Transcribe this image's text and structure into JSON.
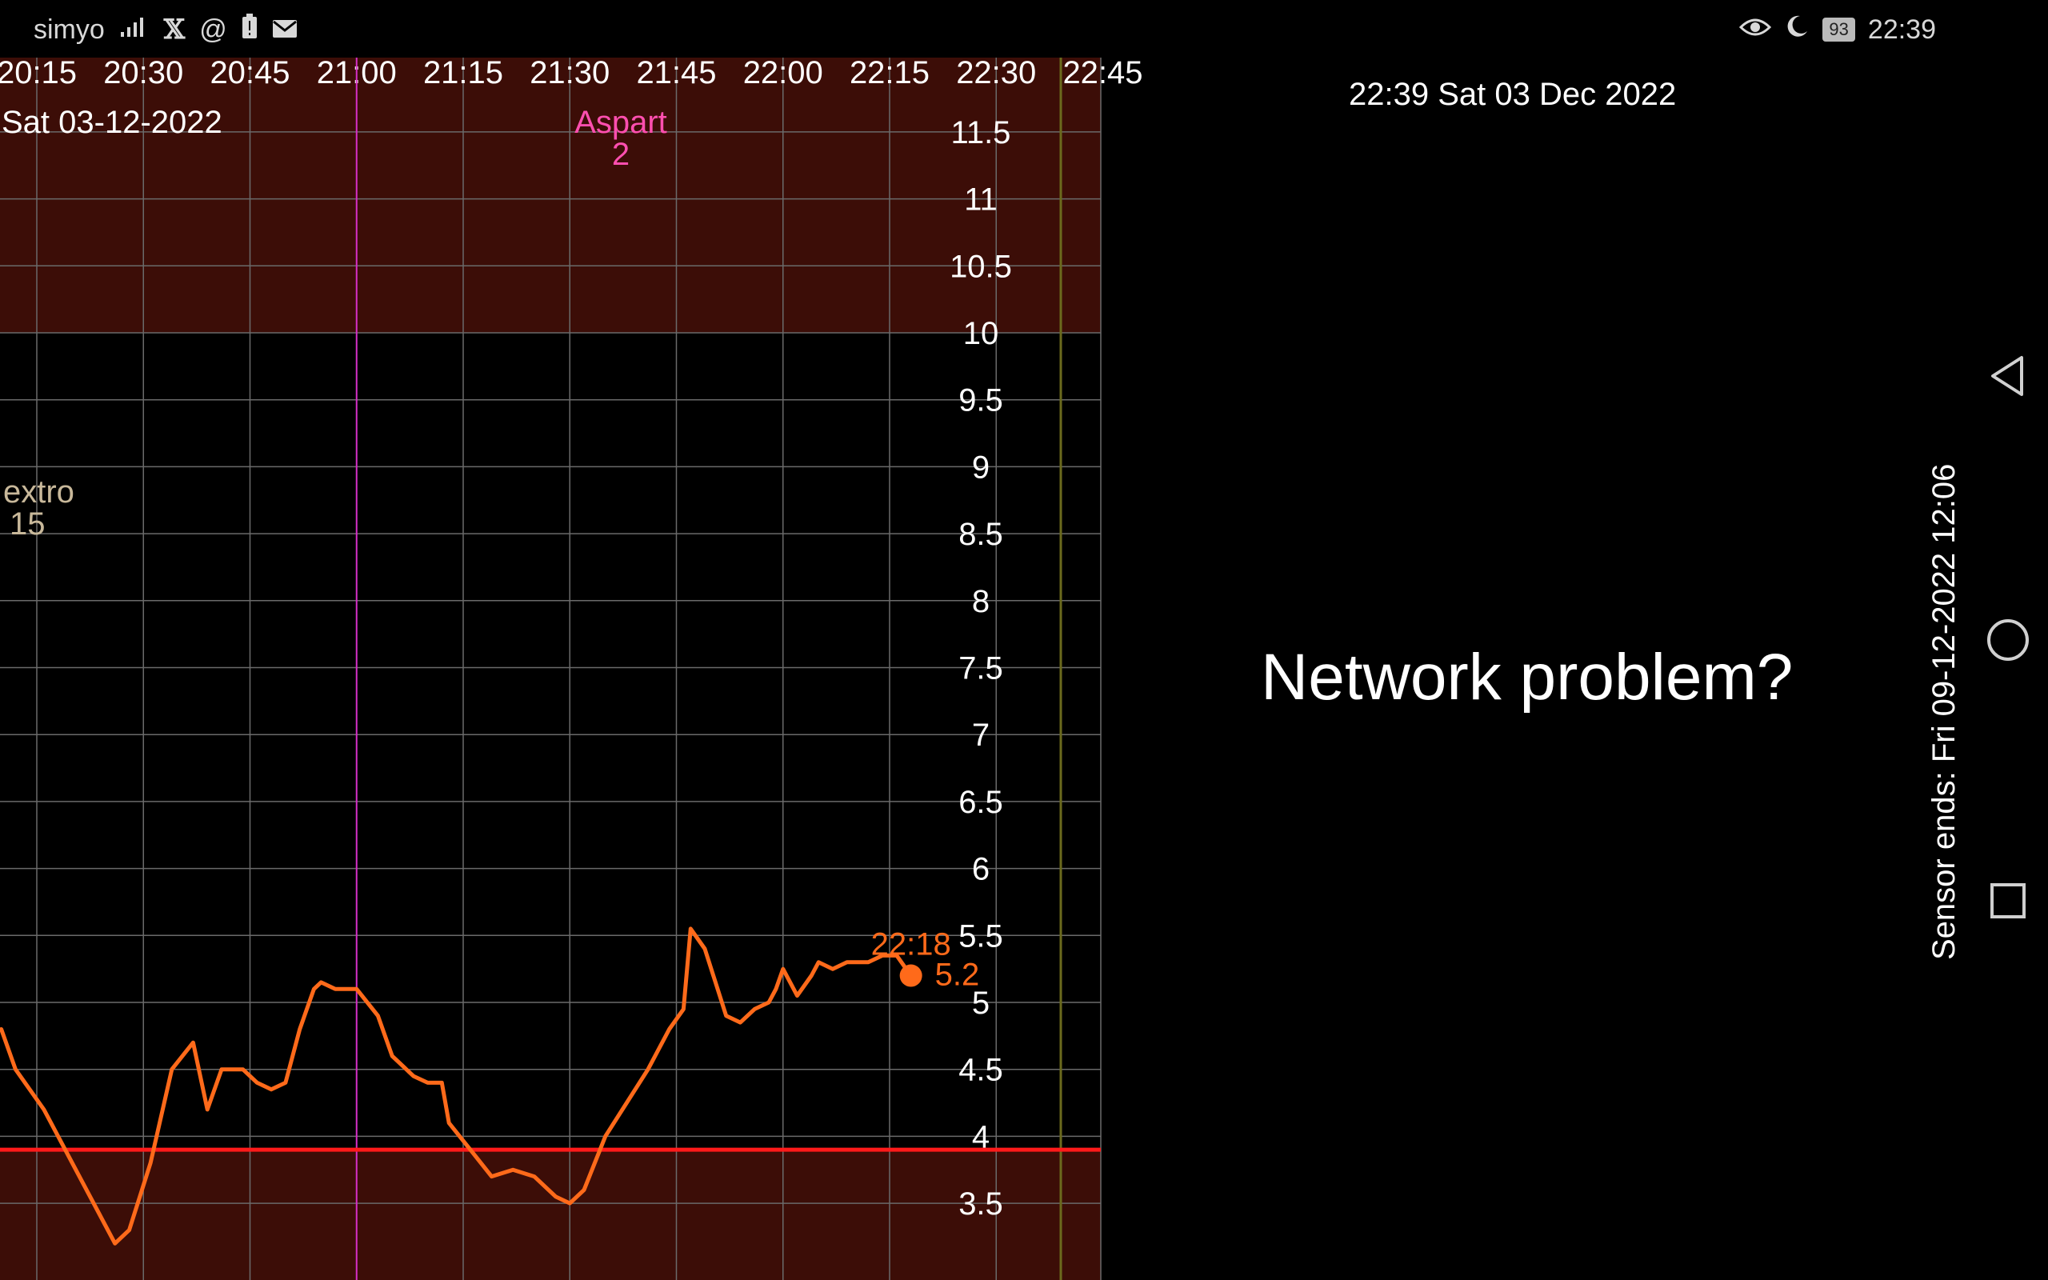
{
  "status_bar": {
    "carrier": "simyo",
    "icons_left": [
      "signal-icon",
      "x-icon",
      "at-icon",
      "battery-alert-icon",
      "mail-icon"
    ],
    "icons_right": [
      "eye-icon",
      "moon-icon"
    ],
    "battery": "93",
    "time": "22:39"
  },
  "chart": {
    "x_tick_labels": [
      "20:15",
      "20:30",
      "20:45",
      "21:00",
      "21:15",
      "21:30",
      "21:45",
      "22:00",
      "22:15",
      "22:30",
      "22:45"
    ],
    "date_label": "Sat 03-12-2022",
    "y_tick_labels": [
      "11.5",
      "11",
      "10.5",
      "10",
      "9.5",
      "9",
      "8.5",
      "8",
      "7.5",
      "7",
      "6.5",
      "6",
      "5.5",
      "5",
      "4.5",
      "4",
      "3.5"
    ],
    "treatment_aspart": {
      "name": "Aspart",
      "value": "2"
    },
    "treatment_dextro": {
      "name": "extro",
      "value": "15"
    },
    "last_reading": {
      "time": "22:18",
      "value": "5.2"
    },
    "colors": {
      "background": "#000000",
      "out_of_range_band": "#3c0d07",
      "grid": "#6a6a6a",
      "glucose_line": "#ff6a1a",
      "low_line": "#ff1a1a",
      "insulin_marker": "#d630c8",
      "now_marker": "#6b6a1d",
      "aspart_text": "#ff4fb0",
      "dextro_text": "#c8b89a"
    }
  },
  "chart_data": {
    "type": "line",
    "title": "",
    "xlabel": "",
    "ylabel": "",
    "x_range": [
      "20:10",
      "22:46"
    ],
    "ylim": [
      3.1,
      12.0
    ],
    "high_threshold": 10,
    "low_threshold": 3.9,
    "grid": true,
    "series": [
      {
        "values_time_glucose": [
          [
            "20:10",
            4.8
          ],
          [
            "20:12",
            4.5
          ],
          [
            "20:16",
            4.2
          ],
          [
            "20:20",
            3.8
          ],
          [
            "20:24",
            3.4
          ],
          [
            "20:26",
            3.2
          ],
          [
            "20:28",
            3.3
          ],
          [
            "20:31",
            3.8
          ],
          [
            "20:34",
            4.5
          ],
          [
            "20:37",
            4.7
          ],
          [
            "20:39",
            4.2
          ],
          [
            "20:41",
            4.5
          ],
          [
            "20:44",
            4.5
          ],
          [
            "20:46",
            4.4
          ],
          [
            "20:48",
            4.35
          ],
          [
            "20:50",
            4.4
          ],
          [
            "20:52",
            4.8
          ],
          [
            "20:54",
            5.1
          ],
          [
            "20:55",
            5.15
          ],
          [
            "20:57",
            5.1
          ],
          [
            "21:00",
            5.1
          ],
          [
            "21:03",
            4.9
          ],
          [
            "21:05",
            4.6
          ],
          [
            "21:08",
            4.45
          ],
          [
            "21:10",
            4.4
          ],
          [
            "21:12",
            4.4
          ],
          [
            "21:13",
            4.1
          ],
          [
            "21:16",
            3.9
          ],
          [
            "21:19",
            3.7
          ],
          [
            "21:22",
            3.75
          ],
          [
            "21:25",
            3.7
          ],
          [
            "21:28",
            3.55
          ],
          [
            "21:30",
            3.5
          ],
          [
            "21:32",
            3.6
          ],
          [
            "21:35",
            4.0
          ],
          [
            "21:38",
            4.25
          ],
          [
            "21:41",
            4.5
          ],
          [
            "21:44",
            4.8
          ],
          [
            "21:46",
            4.95
          ],
          [
            "21:47",
            5.55
          ],
          [
            "21:49",
            5.4
          ],
          [
            "21:52",
            4.9
          ],
          [
            "21:54",
            4.85
          ],
          [
            "21:56",
            4.95
          ],
          [
            "21:58",
            5.0
          ],
          [
            "21:59",
            5.1
          ],
          [
            "22:00",
            5.25
          ],
          [
            "22:02",
            5.05
          ],
          [
            "22:04",
            5.2
          ],
          [
            "22:05",
            5.3
          ],
          [
            "22:07",
            5.25
          ],
          [
            "22:09",
            5.3
          ],
          [
            "22:12",
            5.3
          ],
          [
            "22:14",
            5.35
          ],
          [
            "22:16",
            5.35
          ],
          [
            "22:18",
            5.2
          ]
        ]
      }
    ],
    "annotations": [
      {
        "time": "21:38",
        "label": "Aspart",
        "value": 2
      },
      {
        "time": "20:10",
        "label": "extro",
        "value": 15
      }
    ],
    "last_point": {
      "time": "22:18",
      "value": 5.2
    }
  },
  "right_panel": {
    "clock": "22:39 Sat 03 Dec 2022",
    "message": "Network problem?",
    "sensor_ends": "Sensor ends: Fri 09-12-2022 12:06"
  },
  "nav_bar": {
    "back_icon": "back-triangle-icon",
    "home_icon": "home-circle-icon",
    "recents_icon": "recents-square-icon"
  }
}
